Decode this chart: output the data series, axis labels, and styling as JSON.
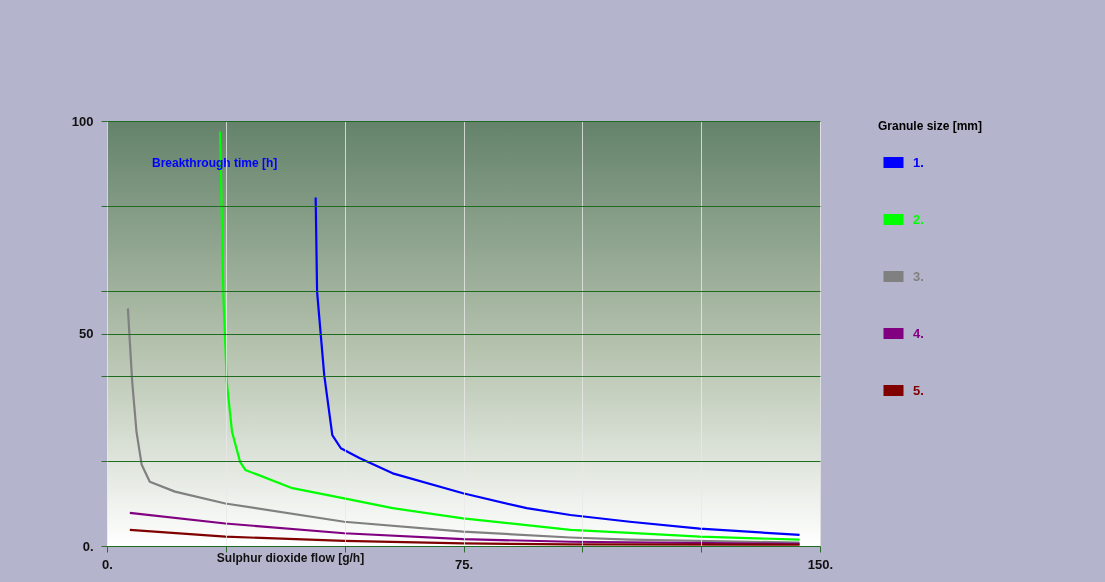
{
  "chart_data": {
    "type": "line",
    "xlabel": "Sulphur dioxide flow [g/h]",
    "ylabel": "Breakthrough time [h]",
    "legend_title": "Granule size [mm]",
    "xlim": [
      0,
      150
    ],
    "ylim": [
      0,
      100
    ],
    "xticks": [
      {
        "value": 0,
        "label": "0."
      },
      {
        "value": 25,
        "label": null
      },
      {
        "value": 50,
        "label": null
      },
      {
        "value": 75,
        "label": "75."
      },
      {
        "value": 100,
        "label": null
      },
      {
        "value": 125,
        "label": null
      },
      {
        "value": 150,
        "label": "150."
      }
    ],
    "yticks": [
      {
        "value": 0,
        "label": "0."
      },
      {
        "value": 20,
        "label": null
      },
      {
        "value": 40,
        "label": null
      },
      50,
      {
        "value": 60,
        "label": null
      },
      {
        "value": 80,
        "label": null
      },
      100
    ],
    "grid": true,
    "legend": "top right",
    "marker": "none",
    "line_style": "solid",
    "series": [
      {
        "name": "1.",
        "color": "#0000ff",
        "x": [
          43.9,
          44.2,
          45.7,
          47.4,
          49.2,
          53.1,
          60.1,
          74.9,
          88.3,
          97.5,
          110,
          124.7,
          145.7
        ],
        "values": [
          82,
          59.8,
          40.2,
          26.1,
          23,
          20.7,
          17.1,
          12.4,
          8.9,
          7.3,
          5.7,
          4.1,
          2.6
        ]
      },
      {
        "name": "2.",
        "color": "#00ff00",
        "x": [
          23.8,
          24.5,
          25.2,
          26.3,
          28,
          29.1,
          39,
          49.9,
          60.1,
          74.9,
          97.5,
          110,
          124.7,
          145.7
        ],
        "values": [
          97.5,
          58.3,
          38.7,
          26.9,
          19.8,
          17.9,
          13.6,
          11.2,
          8.9,
          6.5,
          3.8,
          3.1,
          2.2,
          1.5
        ]
      },
      {
        "name": "3.",
        "color": "#808080",
        "x": [
          4.4,
          4.8,
          5.3,
          6.2,
          7.3,
          9,
          14.3,
          24.9,
          49.9,
          74.9,
          97.5,
          110,
          145.7
        ],
        "values": [
          55.9,
          48.1,
          38.7,
          26.9,
          19.1,
          15.1,
          12.8,
          10,
          5.7,
          3.4,
          2,
          1.5,
          0.8
        ]
      },
      {
        "name": "4.",
        "color": "#800080",
        "x": [
          4.8,
          24.9,
          49.9,
          74.9,
          97.5,
          145.7
        ],
        "values": [
          7.8,
          5.3,
          3,
          1.6,
          1,
          0.5
        ]
      },
      {
        "name": "5.",
        "color": "#800000",
        "x": [
          4.8,
          24.9,
          49.9,
          74.9,
          97.5,
          145.7
        ],
        "values": [
          3.8,
          2.2,
          1.2,
          0.6,
          0.4,
          0.3
        ]
      }
    ]
  }
}
